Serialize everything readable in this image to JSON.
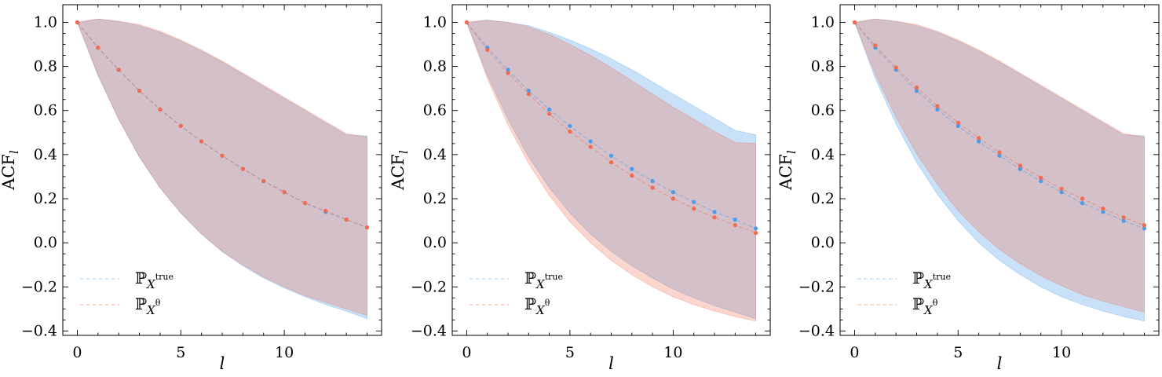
{
  "chart_data": [
    {
      "type": "line",
      "panel": "left",
      "xlabel": "l",
      "ylabel_main": "ACF",
      "ylabel_sub": "l",
      "xlim": [
        -0.7,
        14.7
      ],
      "ylim": [
        -0.42,
        1.08
      ],
      "xticks": [
        0,
        5,
        10
      ],
      "xtick_labels": [
        "0",
        "5",
        "10"
      ],
      "yticks": [
        -0.4,
        -0.2,
        0.0,
        0.2,
        0.4,
        0.6,
        0.8,
        1.0
      ],
      "ytick_labels": [
        "−0.4",
        "−0.2",
        "0.0",
        "0.2",
        "0.4",
        "0.6",
        "0.8",
        "1.0"
      ],
      "legend_position": "lower-left",
      "x": [
        0,
        1,
        2,
        3,
        4,
        5,
        6,
        7,
        8,
        9,
        10,
        11,
        12,
        13,
        14
      ],
      "series": [
        {
          "name_main": "ℙ",
          "name_sub": "X",
          "name_sup": "true",
          "color": "#4a9be8",
          "mean": [
            1.0,
            0.885,
            0.785,
            0.69,
            0.605,
            0.53,
            0.46,
            0.395,
            0.335,
            0.28,
            0.23,
            0.18,
            0.14,
            0.105,
            0.07
          ],
          "upper": [
            1.0,
            1.015,
            1.005,
            0.985,
            0.955,
            0.915,
            0.87,
            0.82,
            0.765,
            0.71,
            0.655,
            0.6,
            0.545,
            0.49,
            0.485
          ],
          "lower": [
            1.0,
            0.76,
            0.56,
            0.39,
            0.25,
            0.135,
            0.04,
            -0.04,
            -0.105,
            -0.16,
            -0.205,
            -0.245,
            -0.28,
            -0.31,
            -0.345
          ]
        },
        {
          "name_main": "ℙ",
          "name_sub": "X",
          "name_sup": "θ",
          "color": "#f26b4f",
          "mean": [
            1.0,
            0.885,
            0.785,
            0.69,
            0.605,
            0.53,
            0.46,
            0.395,
            0.335,
            0.28,
            0.23,
            0.18,
            0.145,
            0.105,
            0.07
          ],
          "upper": [
            1.0,
            1.015,
            1.005,
            0.99,
            0.96,
            0.92,
            0.875,
            0.825,
            0.77,
            0.715,
            0.66,
            0.605,
            0.55,
            0.495,
            0.48
          ],
          "lower": [
            1.0,
            0.76,
            0.56,
            0.39,
            0.25,
            0.135,
            0.04,
            -0.04,
            -0.1,
            -0.155,
            -0.2,
            -0.24,
            -0.27,
            -0.3,
            -0.33
          ]
        }
      ]
    },
    {
      "type": "line",
      "panel": "middle",
      "xlabel": "l",
      "ylabel_main": "ACF",
      "ylabel_sub": "l",
      "xlim": [
        -0.7,
        14.7
      ],
      "ylim": [
        -0.42,
        1.08
      ],
      "xticks": [
        0,
        5,
        10
      ],
      "xtick_labels": [
        "0",
        "5",
        "10"
      ],
      "yticks": [
        -0.4,
        -0.2,
        0.0,
        0.2,
        0.4,
        0.6,
        0.8,
        1.0
      ],
      "ytick_labels": [
        "−0.4",
        "−0.2",
        "0.0",
        "0.2",
        "0.4",
        "0.6",
        "0.8",
        "1.0"
      ],
      "legend_position": "lower-left",
      "x": [
        0,
        1,
        2,
        3,
        4,
        5,
        6,
        7,
        8,
        9,
        10,
        11,
        12,
        13,
        14
      ],
      "series": [
        {
          "name_main": "ℙ",
          "name_sub": "X",
          "name_sup": "true",
          "color": "#4a9be8",
          "mean": [
            1.0,
            0.885,
            0.785,
            0.69,
            0.605,
            0.53,
            0.46,
            0.395,
            0.335,
            0.28,
            0.23,
            0.185,
            0.14,
            0.105,
            0.065
          ],
          "upper": [
            1.0,
            1.01,
            1.0,
            0.985,
            0.955,
            0.92,
            0.88,
            0.835,
            0.785,
            0.73,
            0.675,
            0.62,
            0.565,
            0.51,
            0.49
          ],
          "lower": [
            1.0,
            0.76,
            0.56,
            0.39,
            0.25,
            0.135,
            0.04,
            -0.04,
            -0.105,
            -0.16,
            -0.21,
            -0.25,
            -0.285,
            -0.315,
            -0.345
          ]
        },
        {
          "name_main": "ℙ",
          "name_sub": "X",
          "name_sup": "θ",
          "color": "#f26b4f",
          "mean": [
            1.0,
            0.875,
            0.77,
            0.675,
            0.585,
            0.505,
            0.435,
            0.365,
            0.305,
            0.25,
            0.2,
            0.155,
            0.115,
            0.08,
            0.045
          ],
          "upper": [
            1.0,
            1.01,
            1.0,
            0.98,
            0.945,
            0.9,
            0.85,
            0.795,
            0.735,
            0.675,
            0.615,
            0.56,
            0.505,
            0.455,
            0.45
          ],
          "lower": [
            1.0,
            0.745,
            0.535,
            0.36,
            0.215,
            0.095,
            0.0,
            -0.08,
            -0.145,
            -0.2,
            -0.245,
            -0.28,
            -0.31,
            -0.335,
            -0.355
          ]
        }
      ]
    },
    {
      "type": "line",
      "panel": "right",
      "xlabel": "l",
      "ylabel_main": "ACF",
      "ylabel_sub": "l",
      "xlim": [
        -0.7,
        14.7
      ],
      "ylim": [
        -0.42,
        1.08
      ],
      "xticks": [
        0,
        5,
        10
      ],
      "xtick_labels": [
        "0",
        "5",
        "10"
      ],
      "yticks": [
        -0.4,
        -0.2,
        0.0,
        0.2,
        0.4,
        0.6,
        0.8,
        1.0
      ],
      "ytick_labels": [
        "−0.4",
        "−0.2",
        "0.0",
        "0.2",
        "0.4",
        "0.6",
        "0.8",
        "1.0"
      ],
      "legend_position": "lower-left",
      "x": [
        0,
        1,
        2,
        3,
        4,
        5,
        6,
        7,
        8,
        9,
        10,
        11,
        12,
        13,
        14
      ],
      "series": [
        {
          "name_main": "ℙ",
          "name_sub": "X",
          "name_sup": "true",
          "color": "#4a9be8",
          "mean": [
            1.0,
            0.885,
            0.785,
            0.69,
            0.605,
            0.53,
            0.46,
            0.395,
            0.335,
            0.28,
            0.23,
            0.18,
            0.14,
            0.1,
            0.065
          ],
          "upper": [
            1.0,
            1.015,
            1.005,
            0.985,
            0.955,
            0.915,
            0.87,
            0.82,
            0.765,
            0.71,
            0.655,
            0.6,
            0.545,
            0.49,
            0.485
          ],
          "lower": [
            1.0,
            0.745,
            0.54,
            0.365,
            0.22,
            0.1,
            0.0,
            -0.08,
            -0.145,
            -0.2,
            -0.245,
            -0.28,
            -0.31,
            -0.335,
            -0.355
          ]
        },
        {
          "name_main": "ℙ",
          "name_sub": "X",
          "name_sup": "θ",
          "color": "#f26b4f",
          "mean": [
            1.0,
            0.895,
            0.795,
            0.705,
            0.62,
            0.545,
            0.475,
            0.41,
            0.35,
            0.295,
            0.245,
            0.2,
            0.155,
            0.115,
            0.08
          ],
          "upper": [
            1.0,
            1.015,
            1.005,
            0.99,
            0.96,
            0.92,
            0.875,
            0.825,
            0.77,
            0.715,
            0.66,
            0.605,
            0.55,
            0.495,
            0.48
          ],
          "lower": [
            1.0,
            0.765,
            0.57,
            0.405,
            0.265,
            0.145,
            0.05,
            -0.03,
            -0.095,
            -0.15,
            -0.195,
            -0.235,
            -0.265,
            -0.29,
            -0.315
          ]
        }
      ]
    }
  ]
}
